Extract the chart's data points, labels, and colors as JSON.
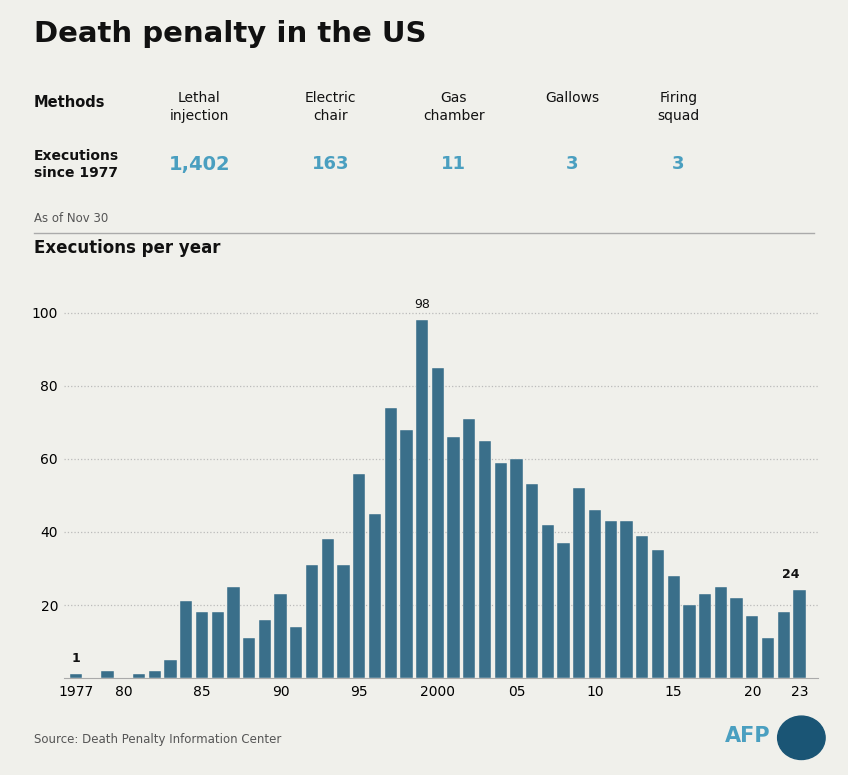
{
  "title": "Death penalty in the US",
  "subtitle": "Executions per year",
  "methods_label": "Methods",
  "executions_label1": "Executions since 1977",
  "as_of": "As of Nov 30",
  "source": "Source: Death Penalty Information Center",
  "methods": [
    "Lethal\ninjection",
    "Electric\nchair",
    "Gas\nchamber",
    "Gallows",
    "Firing\nsquad"
  ],
  "method_counts": [
    "1,402",
    "163",
    "11",
    "3",
    "3"
  ],
  "bar_color": "#3a6f8a",
  "method_color": "#4a9fc0",
  "years": [
    1977,
    1978,
    1979,
    1980,
    1981,
    1982,
    1983,
    1984,
    1985,
    1986,
    1987,
    1988,
    1989,
    1990,
    1991,
    1992,
    1993,
    1994,
    1995,
    1996,
    1997,
    1998,
    1999,
    2000,
    2001,
    2002,
    2003,
    2004,
    2005,
    2006,
    2007,
    2008,
    2009,
    2010,
    2011,
    2012,
    2013,
    2014,
    2015,
    2016,
    2017,
    2018,
    2019,
    2020,
    2021,
    2022,
    2023
  ],
  "executions": [
    1,
    0,
    2,
    0,
    1,
    2,
    5,
    21,
    18,
    18,
    25,
    11,
    16,
    23,
    14,
    31,
    38,
    31,
    56,
    45,
    74,
    68,
    98,
    85,
    66,
    71,
    65,
    59,
    60,
    53,
    42,
    37,
    52,
    46,
    43,
    43,
    39,
    35,
    28,
    20,
    23,
    25,
    22,
    17,
    11,
    18,
    24
  ],
  "ylim": [
    0,
    105
  ],
  "yticks": [
    20,
    40,
    60,
    80,
    100
  ],
  "xtick_labels": [
    "1977",
    "80",
    "85",
    "90",
    "95",
    "2000",
    "05",
    "10",
    "15",
    "20",
    "23"
  ],
  "xtick_positions": [
    1977,
    1980,
    1985,
    1990,
    1995,
    2000,
    2005,
    2010,
    2015,
    2020,
    2023
  ],
  "bg_color": "#f0f0eb",
  "text_color": "#111111",
  "afp_blue": "#4a9fc0",
  "afp_dark": "#1a5575"
}
